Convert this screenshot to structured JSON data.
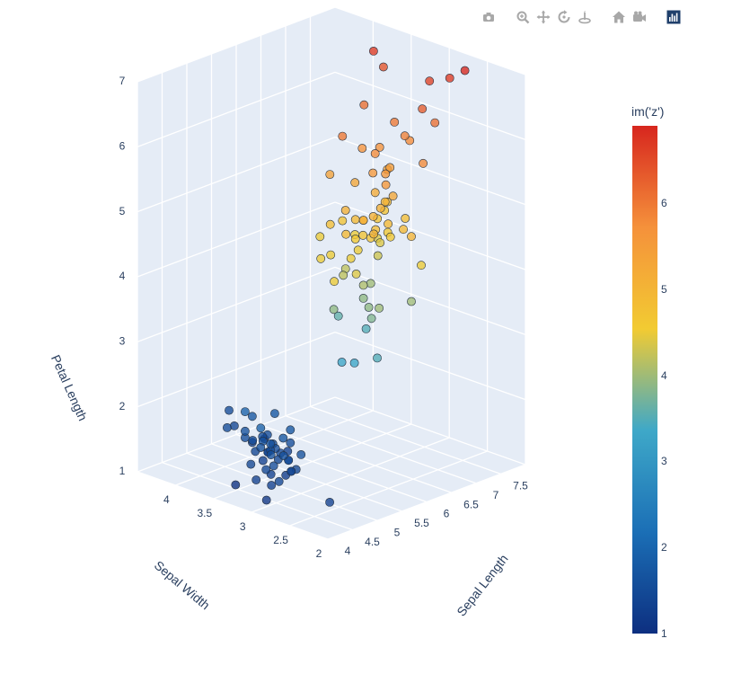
{
  "modebar": {
    "buttons": [
      {
        "name": "camera-icon",
        "title": "Download plot as a png"
      },
      {
        "name": "zoom-icon",
        "title": "Zoom"
      },
      {
        "name": "pan-icon",
        "title": "Pan"
      },
      {
        "name": "orbit-rotation-icon",
        "title": "Orbital rotation"
      },
      {
        "name": "turntable-rotation-icon",
        "title": "Turntable rotation"
      },
      {
        "name": "home-icon",
        "title": "Reset camera to default"
      },
      {
        "name": "camera-last-save-icon",
        "title": "Reset camera to last save"
      },
      {
        "name": "plotly-logo-icon",
        "title": "Produced with Plotly"
      }
    ],
    "icon_color": "#a8a8a8",
    "logo_color": "#1f3f6b"
  },
  "chart_data": {
    "type": "scatter3d",
    "title": "",
    "xlabel": "Sepal Length",
    "ylabel": "Sepal Width",
    "zlabel": "Petal Length",
    "x_range": [
      4,
      8
    ],
    "y_range": [
      2,
      4.5
    ],
    "z_range": [
      1,
      7
    ],
    "x_ticks": [
      "4",
      "4.5",
      "5",
      "5.5",
      "6",
      "6.5",
      "7",
      "7.5"
    ],
    "y_ticks": [
      "2",
      "2.5",
      "3",
      "3.5",
      "4"
    ],
    "z_ticks": [
      "1",
      "2",
      "3",
      "4",
      "5",
      "6",
      "7"
    ],
    "scene_background": "#e5ecf6",
    "grid_color": "#ffffff",
    "colorbar": {
      "title": "im('z')",
      "ticks": [
        "1",
        "2",
        "3",
        "4",
        "5",
        "6"
      ],
      "range": [
        1,
        6.9
      ],
      "colorscale": [
        "#0d2f80",
        "#1b6fb6",
        "#3ea8c8",
        "#f2cb32",
        "#f5913b",
        "#d7261e"
      ]
    },
    "points": [
      [
        5.1,
        3.5,
        1.4
      ],
      [
        4.9,
        3.0,
        1.4
      ],
      [
        4.7,
        3.2,
        1.3
      ],
      [
        4.6,
        3.1,
        1.5
      ],
      [
        5.0,
        3.6,
        1.4
      ],
      [
        5.4,
        3.9,
        1.7
      ],
      [
        4.6,
        3.4,
        1.4
      ],
      [
        5.0,
        3.4,
        1.5
      ],
      [
        4.4,
        2.9,
        1.4
      ],
      [
        4.9,
        3.1,
        1.5
      ],
      [
        5.4,
        3.7,
        1.5
      ],
      [
        4.8,
        3.4,
        1.6
      ],
      [
        4.8,
        3.0,
        1.4
      ],
      [
        4.3,
        3.0,
        1.1
      ],
      [
        5.8,
        4.0,
        1.2
      ],
      [
        5.7,
        4.4,
        1.5
      ],
      [
        5.4,
        3.9,
        1.3
      ],
      [
        5.1,
        3.5,
        1.4
      ],
      [
        5.7,
        3.8,
        1.7
      ],
      [
        5.1,
        3.8,
        1.5
      ],
      [
        5.4,
        3.4,
        1.7
      ],
      [
        5.1,
        3.7,
        1.5
      ],
      [
        4.6,
        3.6,
        1.0
      ],
      [
        5.1,
        3.3,
        1.7
      ],
      [
        4.8,
        3.4,
        1.9
      ],
      [
        5.0,
        3.0,
        1.6
      ],
      [
        5.0,
        3.4,
        1.6
      ],
      [
        5.2,
        3.5,
        1.5
      ],
      [
        5.2,
        3.4,
        1.4
      ],
      [
        4.7,
        3.2,
        1.6
      ],
      [
        4.8,
        3.1,
        1.6
      ],
      [
        5.4,
        3.4,
        1.5
      ],
      [
        5.2,
        4.1,
        1.5
      ],
      [
        5.5,
        4.2,
        1.4
      ],
      [
        4.9,
        3.1,
        1.5
      ],
      [
        5.0,
        3.2,
        1.2
      ],
      [
        5.5,
        3.5,
        1.3
      ],
      [
        4.4,
        3.0,
        1.3
      ],
      [
        5.1,
        3.4,
        1.5
      ],
      [
        5.0,
        3.5,
        1.3
      ],
      [
        4.5,
        2.3,
        1.3
      ],
      [
        4.4,
        3.2,
        1.3
      ],
      [
        5.0,
        3.5,
        1.6
      ],
      [
        5.1,
        3.8,
        1.9
      ],
      [
        4.8,
        3.0,
        1.4
      ],
      [
        5.1,
        3.8,
        1.6
      ],
      [
        4.6,
        3.2,
        1.4
      ],
      [
        5.3,
        3.7,
        1.5
      ],
      [
        5.0,
        3.3,
        1.4
      ],
      [
        7.0,
        3.2,
        4.7
      ],
      [
        6.4,
        3.2,
        4.5
      ],
      [
        6.9,
        3.1,
        4.9
      ],
      [
        5.5,
        2.3,
        4.0
      ],
      [
        6.5,
        2.8,
        4.6
      ],
      [
        5.7,
        2.8,
        4.5
      ],
      [
        6.3,
        3.3,
        4.7
      ],
      [
        4.9,
        2.4,
        3.3
      ],
      [
        6.6,
        2.9,
        4.6
      ],
      [
        5.2,
        2.7,
        3.9
      ],
      [
        5.0,
        2.0,
        3.5
      ],
      [
        5.9,
        3.0,
        4.2
      ],
      [
        6.0,
        2.2,
        4.0
      ],
      [
        6.1,
        2.9,
        4.7
      ],
      [
        5.6,
        2.9,
        3.6
      ],
      [
        6.7,
        3.1,
        4.4
      ],
      [
        5.6,
        3.0,
        4.5
      ],
      [
        5.8,
        2.7,
        4.1
      ],
      [
        6.2,
        2.2,
        4.5
      ],
      [
        5.6,
        2.5,
        3.9
      ],
      [
        5.9,
        3.2,
        4.8
      ],
      [
        6.1,
        2.8,
        4.0
      ],
      [
        6.3,
        2.5,
        4.9
      ],
      [
        6.1,
        2.8,
        4.7
      ],
      [
        6.4,
        2.9,
        4.3
      ],
      [
        6.6,
        3.0,
        4.4
      ],
      [
        6.8,
        2.8,
        4.8
      ],
      [
        6.7,
        3.0,
        5.0
      ],
      [
        6.0,
        2.9,
        4.5
      ],
      [
        5.7,
        2.6,
        3.5
      ],
      [
        5.5,
        2.4,
        3.8
      ],
      [
        5.8,
        2.7,
        3.9
      ],
      [
        6.0,
        2.7,
        5.1
      ],
      [
        5.4,
        3.0,
        4.5
      ],
      [
        6.0,
        3.4,
        4.5
      ],
      [
        6.7,
        3.1,
        4.7
      ],
      [
        5.5,
        2.6,
        4.4
      ],
      [
        6.1,
        3.0,
        4.6
      ],
      [
        5.0,
        2.3,
        3.3
      ],
      [
        5.7,
        2.9,
        4.2
      ],
      [
        6.3,
        3.3,
        6.0
      ],
      [
        5.8,
        2.7,
        5.1
      ],
      [
        7.1,
        3.0,
        5.9
      ],
      [
        6.3,
        2.9,
        5.6
      ],
      [
        6.5,
        3.0,
        5.8
      ],
      [
        7.6,
        3.0,
        6.6
      ],
      [
        4.9,
        2.5,
        4.5
      ],
      [
        7.3,
        2.9,
        6.3
      ],
      [
        6.7,
        2.5,
        5.8
      ],
      [
        7.2,
        3.6,
        6.1
      ],
      [
        6.4,
        2.7,
        5.3
      ],
      [
        6.8,
        3.0,
        5.5
      ],
      [
        5.7,
        2.5,
        5.0
      ],
      [
        6.4,
        3.2,
        5.3
      ],
      [
        7.7,
        3.8,
        6.7
      ],
      [
        7.7,
        2.6,
        6.9
      ],
      [
        6.0,
        2.2,
        5.0
      ],
      [
        6.9,
        3.2,
        5.7
      ],
      [
        5.6,
        2.8,
        4.9
      ],
      [
        7.7,
        2.8,
        6.7
      ],
      [
        6.3,
        2.7,
        4.9
      ],
      [
        6.7,
        3.3,
        5.7
      ],
      [
        7.2,
        3.2,
        6.0
      ],
      [
        6.2,
        2.8,
        4.8
      ],
      [
        6.1,
        3.0,
        4.9
      ],
      [
        6.4,
        2.8,
        5.6
      ],
      [
        7.2,
        3.0,
        5.8
      ],
      [
        7.4,
        2.8,
        6.1
      ],
      [
        7.9,
        3.8,
        6.4
      ],
      [
        6.3,
        2.8,
        5.1
      ],
      [
        6.1,
        2.6,
        5.6
      ],
      [
        6.9,
        3.1,
        5.4
      ],
      [
        5.8,
        2.7,
        5.1
      ],
      [
        6.5,
        3.0,
        5.2
      ],
      [
        6.2,
        3.4,
        5.4
      ],
      [
        5.9,
        3.0,
        5.1
      ]
    ]
  }
}
